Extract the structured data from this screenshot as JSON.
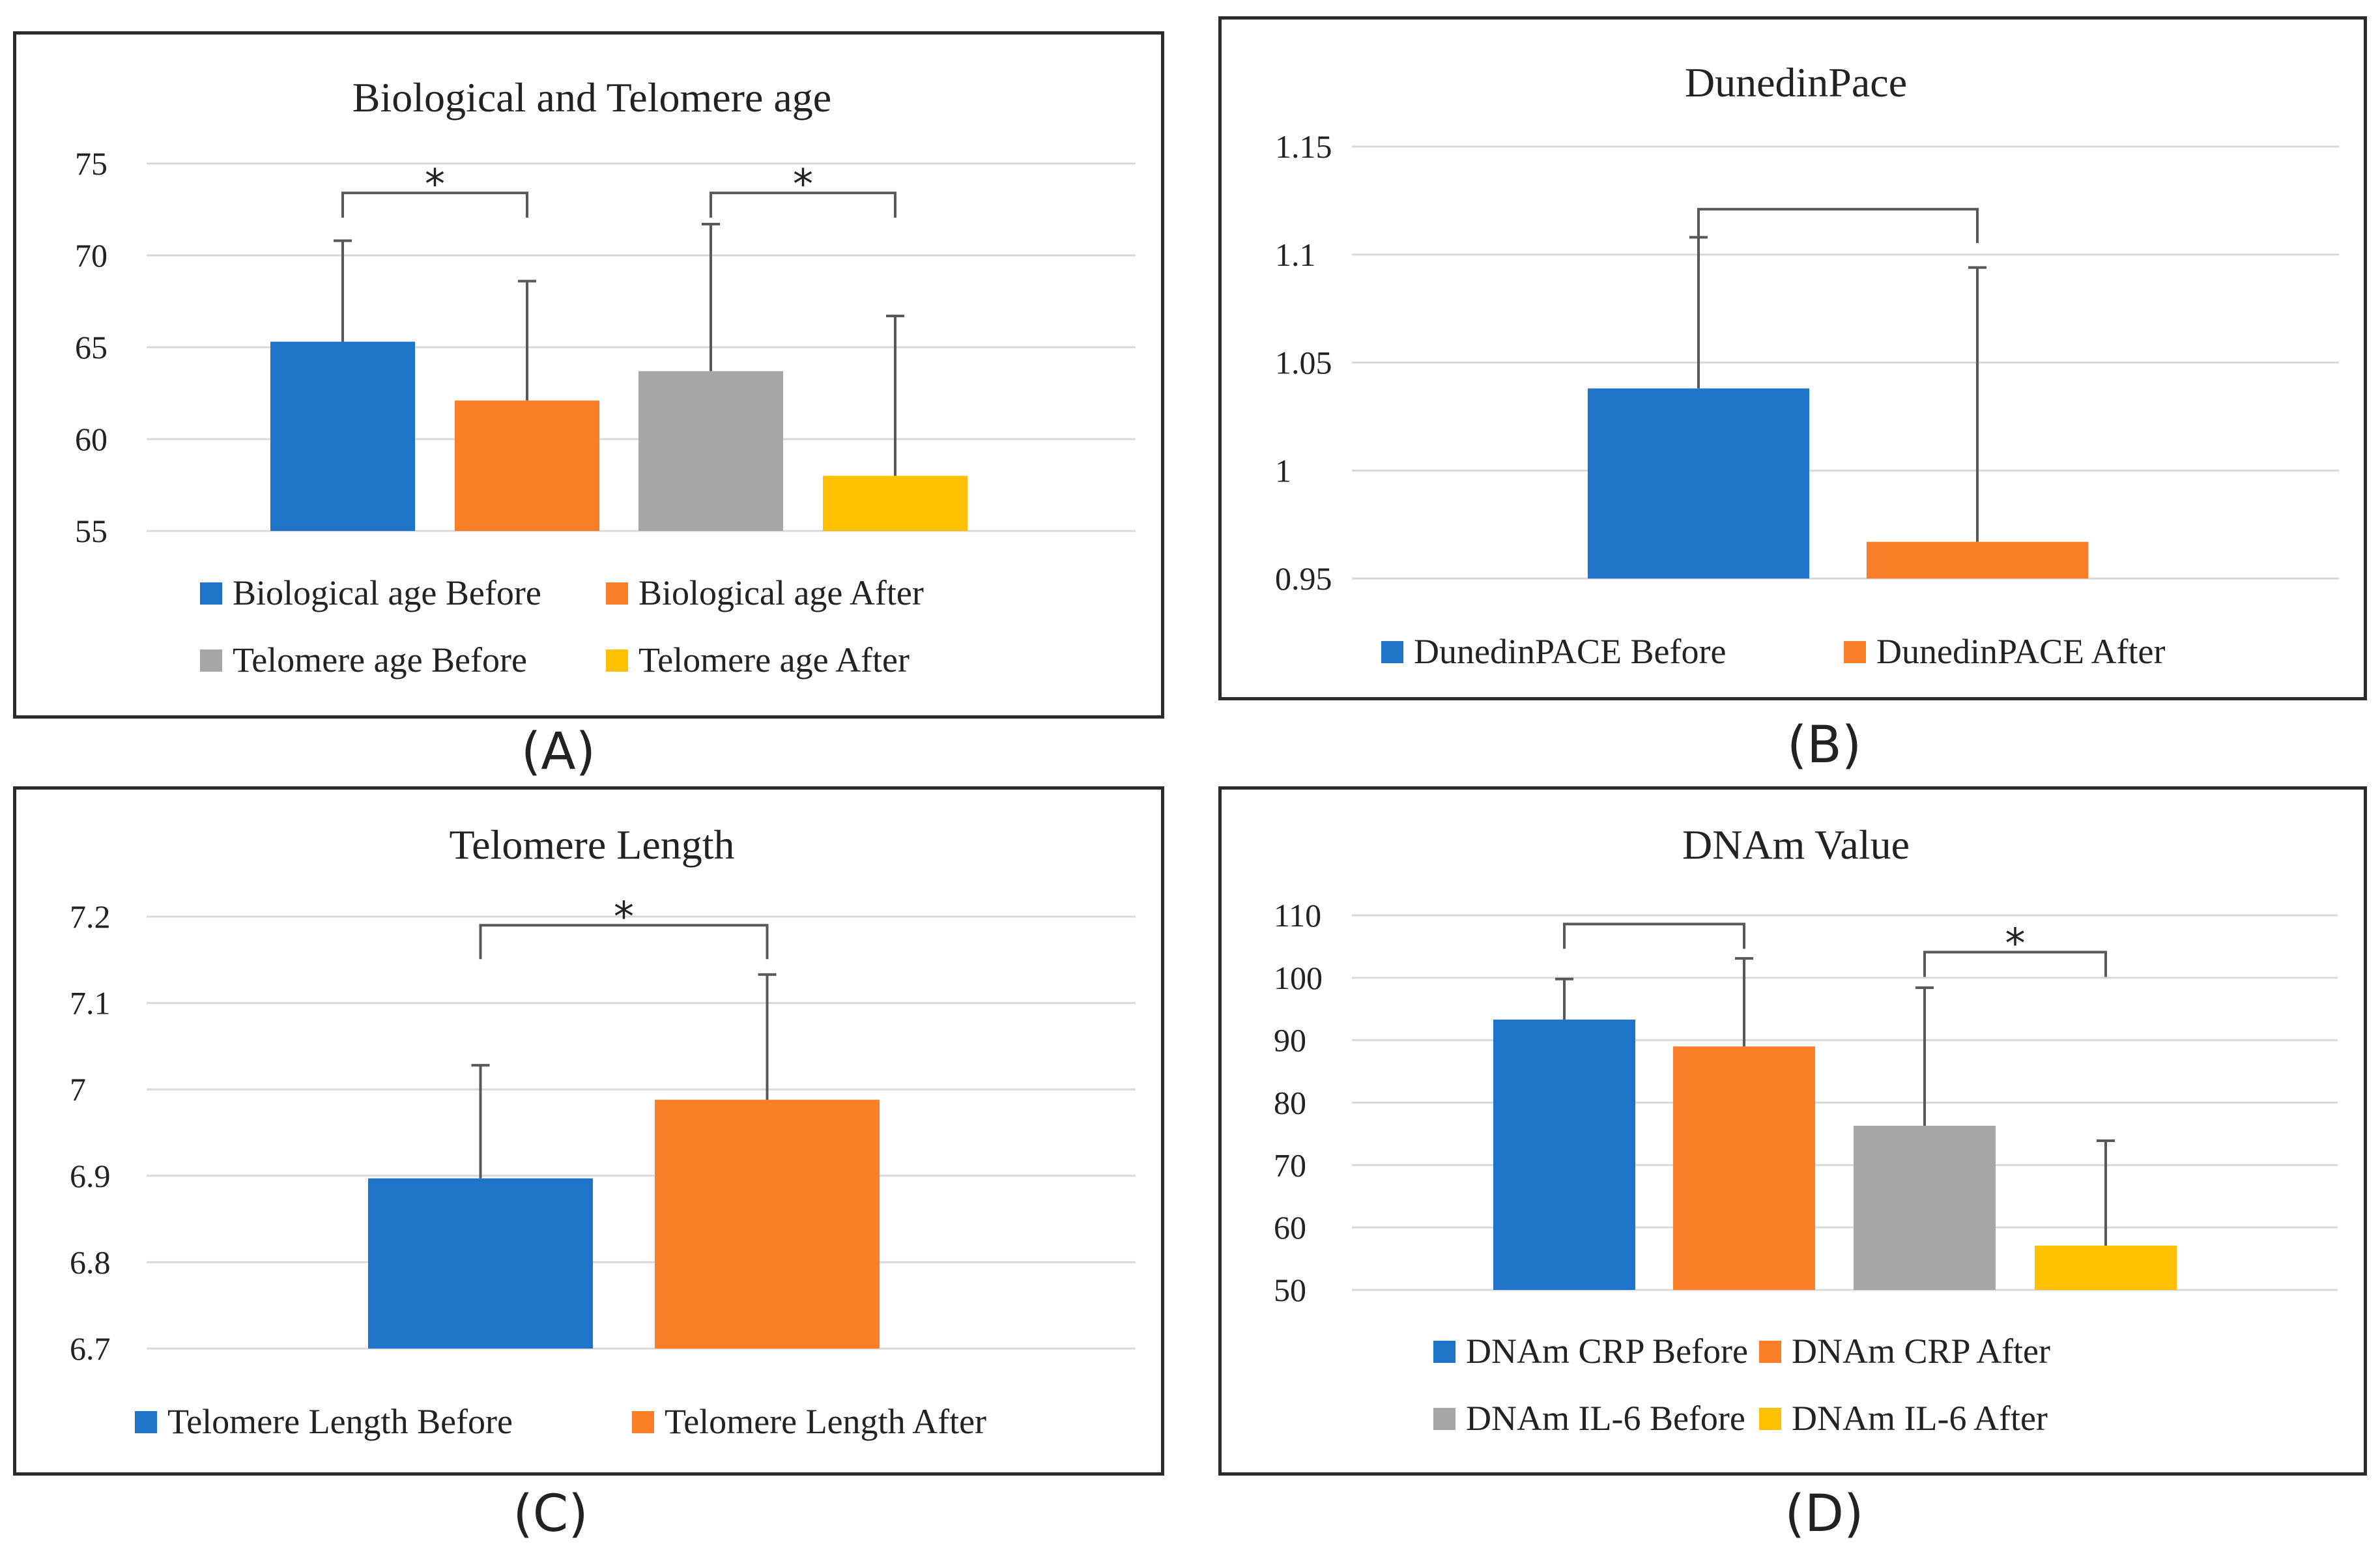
{
  "colors": {
    "blue": "#1f74c9",
    "orange": "#f97e27",
    "gray": "#a6a6a6",
    "yellow": "#ffc000"
  },
  "panels": [
    {
      "label": "(A)",
      "chart_data": {
        "type": "bar",
        "title": "Biological and Telomere age",
        "ylim": [
          55,
          75
        ],
        "yticks": [
          "75",
          "70",
          "65",
          "60",
          "55"
        ],
        "ytick_values": [
          75,
          70,
          65,
          60,
          55
        ],
        "series": [
          {
            "name": "Biological age Before",
            "value": 65.3,
            "error_top": 70.8,
            "color": "blue"
          },
          {
            "name": "Biological age After",
            "value": 62.1,
            "error_top": 68.6,
            "color": "orange"
          },
          {
            "name": "Telomere age Before",
            "value": 63.7,
            "error_top": 71.7,
            "color": "gray"
          },
          {
            "name": "Telomere age After",
            "value": 58.0,
            "error_top": 66.7,
            "color": "yellow"
          }
        ],
        "brackets": [
          {
            "from": 0,
            "to": 1,
            "y": 73.4,
            "label": "*"
          },
          {
            "from": 2,
            "to": 3,
            "y": 73.4,
            "label": "*"
          }
        ]
      }
    },
    {
      "label": "(B)",
      "chart_data": {
        "type": "bar",
        "title": "DunedinPace",
        "ylim": [
          0.95,
          1.15
        ],
        "yticks": [
          "1.15",
          "1.1",
          "1.05",
          "1",
          "0.95"
        ],
        "ytick_values": [
          1.15,
          1.1,
          1.05,
          1.0,
          0.95
        ],
        "series": [
          {
            "name": "DunedinPACE Before",
            "value": 1.038,
            "error_top": 1.108,
            "color": "blue"
          },
          {
            "name": "DunedinPACE After",
            "value": 0.967,
            "error_top": 1.094,
            "color": "orange"
          }
        ],
        "brackets": [
          {
            "from": 0,
            "to": 1,
            "y": 1.121,
            "label": ""
          }
        ]
      }
    },
    {
      "label": "(C)",
      "chart_data": {
        "type": "bar",
        "title": "Telomere Length",
        "ylim": [
          6.7,
          7.2
        ],
        "yticks": [
          "7.2",
          "7.1",
          "7",
          "6.9",
          "6.8",
          "6.7"
        ],
        "ytick_values": [
          7.2,
          7.1,
          7.0,
          6.9,
          6.8,
          6.7
        ],
        "series": [
          {
            "name": "Telomere Length Before",
            "value": 6.897,
            "error_top": 7.028,
            "color": "blue"
          },
          {
            "name": "Telomere Length After",
            "value": 6.988,
            "error_top": 7.133,
            "color": "orange"
          }
        ],
        "brackets": [
          {
            "from": 0,
            "to": 1,
            "y": 7.19,
            "label": "*"
          }
        ]
      }
    },
    {
      "label": "(D)",
      "chart_data": {
        "type": "bar",
        "title": "DNAm Value",
        "ylim": [
          50,
          110
        ],
        "yticks": [
          "110",
          "100",
          "90",
          "80",
          "70",
          "60",
          "50"
        ],
        "ytick_values": [
          110,
          100,
          90,
          80,
          70,
          60,
          50
        ],
        "series": [
          {
            "name": "DNAm CRP Before",
            "value": 93.3,
            "error_top": 99.8,
            "color": "blue"
          },
          {
            "name": "DNAm CRP After",
            "value": 89.0,
            "error_top": 103.1,
            "color": "orange"
          },
          {
            "name": "DNAm IL-6 Before",
            "value": 76.3,
            "error_top": 98.4,
            "color": "gray"
          },
          {
            "name": "DNAm IL-6 After",
            "value": 57.1,
            "error_top": 73.9,
            "color": "yellow"
          }
        ],
        "brackets": [
          {
            "from": 0,
            "to": 1,
            "y": 108.6,
            "label": ""
          },
          {
            "from": 2,
            "to": 3,
            "y": 104.1,
            "label": "*"
          }
        ]
      }
    }
  ]
}
